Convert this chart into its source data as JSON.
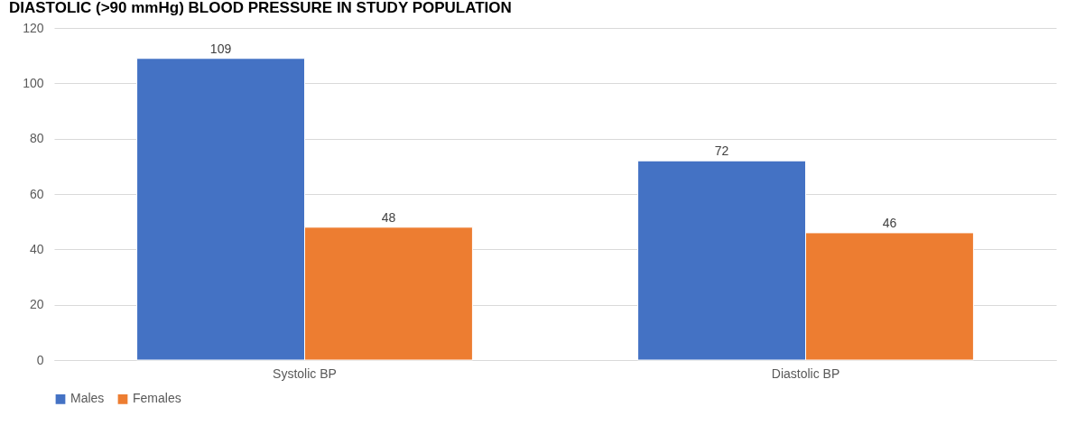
{
  "chart_data": {
    "type": "bar",
    "title": "DIASTOLIC (>90 mmHg) BLOOD PRESSURE IN STUDY POPULATION",
    "categories": [
      "Systolic BP",
      "Diastolic BP"
    ],
    "series": [
      {
        "name": "Males",
        "color": "#4472c4",
        "values": [
          109,
          72
        ]
      },
      {
        "name": "Females",
        "color": "#ed7d31",
        "values": [
          48,
          46
        ]
      }
    ],
    "ylim": [
      0,
      120
    ],
    "yticks": [
      0,
      20,
      40,
      60,
      80,
      100,
      120
    ],
    "grid": "y",
    "legend": "bottom",
    "data_labels": true
  }
}
